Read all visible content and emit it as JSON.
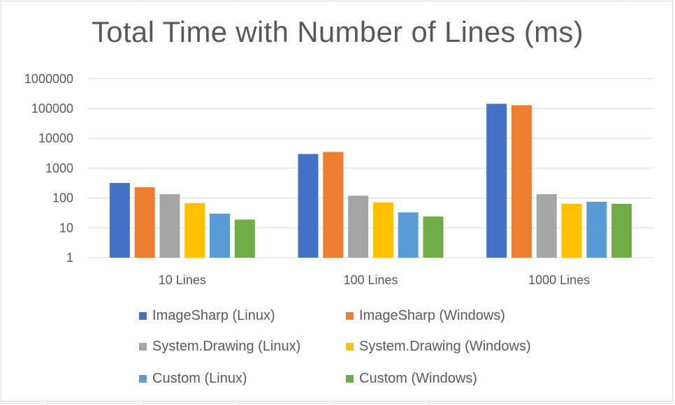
{
  "chart_data": {
    "type": "bar",
    "title": "Total Time with Number of Lines (ms)",
    "xlabel": "",
    "ylabel": "",
    "yscale": "log",
    "ylim": [
      1,
      1000000
    ],
    "yticks": [
      "1",
      "10",
      "100",
      "1000",
      "10000",
      "100000",
      "1000000"
    ],
    "categories": [
      "10 Lines",
      "100 Lines",
      "1000 Lines"
    ],
    "series": [
      {
        "name": "ImageSharp (Linux)",
        "color": "#4472C4",
        "values": [
          320,
          3000,
          145000
        ]
      },
      {
        "name": "ImageSharp (Windows)",
        "color": "#ED7D31",
        "values": [
          230,
          3500,
          130000
        ]
      },
      {
        "name": "System.Drawing (Linux)",
        "color": "#A5A5A5",
        "values": [
          135,
          120,
          135
        ]
      },
      {
        "name": "System.Drawing (Windows)",
        "color": "#FFC000",
        "values": [
          68,
          72,
          64
        ]
      },
      {
        "name": "Custom (Linux)",
        "color": "#5B9BD5",
        "values": [
          30,
          33,
          75
        ]
      },
      {
        "name": "Custom (Windows)",
        "color": "#70AD47",
        "values": [
          19,
          24,
          64
        ]
      }
    ],
    "grid": true,
    "legend_position": "bottom"
  }
}
